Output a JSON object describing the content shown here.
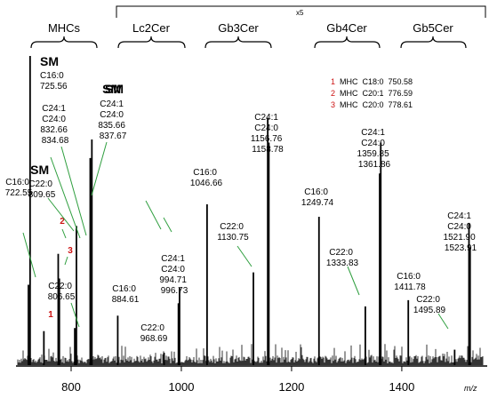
{
  "chart_data": {
    "type": "bar",
    "xlabel": "m/z",
    "xlim": [
      700,
      1555
    ],
    "x_ticks": [
      800,
      1000,
      1200,
      1400
    ],
    "x_tick_labels": [
      "800",
      "1000",
      "1200",
      "1400"
    ],
    "scale_marker": "x5",
    "groups": [
      "MHCs",
      "Lc2Cer",
      "Gb3Cer",
      "Gb4Cer",
      "Gb5Cer"
    ],
    "legend": [
      {
        "num": "1",
        "text": "MHC  C18:0  750.58",
        "color": "#cc1111"
      },
      {
        "num": "2",
        "text": "MHC  C20:1  776.59",
        "color": "#cc1111"
      },
      {
        "num": "3",
        "text": "MHC  C20:0  778.61",
        "color": "#cc1111"
      }
    ],
    "annotations": [
      {
        "lines": [
          "C16:0",
          "722.55"
        ]
      },
      {
        "lines": [
          "SM",
          "C16:0",
          "725.56"
        ]
      },
      {
        "lines": [
          "SM"
        ]
      },
      {
        "lines": [
          "C22:0",
          "806.65"
        ]
      },
      {
        "lines": [
          "SM",
          "C22:0",
          "809.65"
        ]
      },
      {
        "lines": [
          "C24:1",
          "C24:0",
          "832.66",
          "834.68"
        ]
      },
      {
        "lines": [
          "SM",
          "C24:1",
          "C24:0",
          "835.66",
          "837.67"
        ]
      },
      {
        "lines": [
          "C16:0",
          "884.61"
        ]
      },
      {
        "lines": [
          "C22:0",
          "968.69"
        ]
      },
      {
        "lines": [
          "C24:1",
          "C24:0",
          "994.71",
          "996.73"
        ]
      },
      {
        "lines": [
          "C16:0",
          "1046.66"
        ]
      },
      {
        "lines": [
          "C22:0",
          "1130.75"
        ]
      },
      {
        "lines": [
          "C24:1",
          "C24:0",
          "1156.76",
          "1158.78"
        ]
      },
      {
        "lines": [
          "C16:0",
          "1249.74"
        ]
      },
      {
        "lines": [
          "C22:0",
          "1333.83"
        ]
      },
      {
        "lines": [
          "C24:1",
          "C24:0",
          "1359.85",
          "1361.86"
        ]
      },
      {
        "lines": [
          "C16:0",
          "1411.78"
        ]
      },
      {
        "lines": [
          "C22:0",
          "1495.89"
        ]
      },
      {
        "lines": [
          "C24:1",
          "C24:0",
          "1521.90",
          "1523.91"
        ]
      }
    ],
    "peak_numbers": [
      "1",
      "2",
      "3"
    ],
    "peaks": [
      {
        "x": 722.55,
        "y": 0.26
      },
      {
        "x": 725.56,
        "y": 1.0
      },
      {
        "x": 750.58,
        "y": 0.11
      },
      {
        "x": 776.59,
        "y": 0.36
      },
      {
        "x": 778.61,
        "y": 0.28
      },
      {
        "x": 806.65,
        "y": 0.12
      },
      {
        "x": 809.65,
        "y": 0.45
      },
      {
        "x": 834.68,
        "y": 0.67
      },
      {
        "x": 837.67,
        "y": 0.73
      },
      {
        "x": 884.61,
        "y": 0.16
      },
      {
        "x": 968.69,
        "y": 0.04
      },
      {
        "x": 994.71,
        "y": 0.2
      },
      {
        "x": 996.73,
        "y": 0.25
      },
      {
        "x": 1046.66,
        "y": 0.52
      },
      {
        "x": 1130.75,
        "y": 0.3
      },
      {
        "x": 1156.76,
        "y": 0.8
      },
      {
        "x": 1158.78,
        "y": 0.72
      },
      {
        "x": 1249.74,
        "y": 0.48
      },
      {
        "x": 1333.83,
        "y": 0.19
      },
      {
        "x": 1359.85,
        "y": 0.62
      },
      {
        "x": 1361.86,
        "y": 0.72
      },
      {
        "x": 1411.78,
        "y": 0.21
      },
      {
        "x": 1495.89,
        "y": 0.05
      },
      {
        "x": 1521.9,
        "y": 0.46
      },
      {
        "x": 1523.91,
        "y": 0.38
      }
    ]
  }
}
